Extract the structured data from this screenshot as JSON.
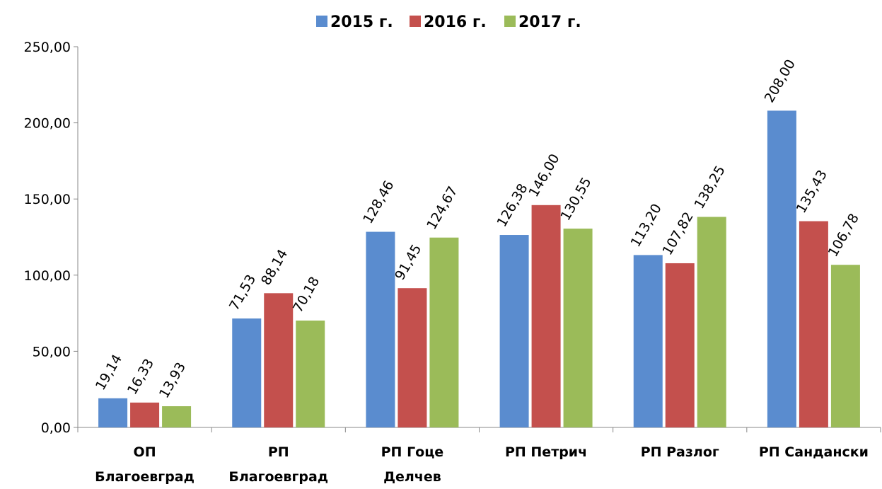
{
  "chart_data": {
    "type": "bar",
    "categories": [
      [
        "ОП",
        "Благоевград"
      ],
      [
        "РП",
        "Благоевград"
      ],
      [
        "РП Гоце",
        "Делчев"
      ],
      [
        "РП Петрич"
      ],
      [
        "РП Разлог"
      ],
      [
        "РП Сандански"
      ]
    ],
    "series": [
      {
        "name": "2015 г.",
        "color": "#5a8ccf",
        "values": [
          19.14,
          71.53,
          128.46,
          126.38,
          113.2,
          208
        ],
        "value_labels": [
          "19,14",
          "71,53",
          "128,46",
          "126,38",
          "113,20",
          "208,00"
        ]
      },
      {
        "name": "2016 г.",
        "color": "#c4504d",
        "values": [
          16.33,
          88.14,
          91.45,
          146,
          107.82,
          135.43
        ],
        "value_labels": [
          "16,33",
          "88,14",
          "91,45",
          "146,00",
          "107,82",
          "135,43"
        ]
      },
      {
        "name": "2017 г.",
        "color": "#9bbb59",
        "values": [
          13.93,
          70.18,
          124.67,
          130.55,
          138.25,
          106.78
        ],
        "value_labels": [
          "13,93",
          "70,18",
          "124,67",
          "130,55",
          "138,25",
          "106,78"
        ]
      }
    ],
    "ylim": [
      0,
      250
    ],
    "yticks": [
      {
        "value": 0,
        "label": "0,00"
      },
      {
        "value": 50,
        "label": "50,00"
      },
      {
        "value": 100,
        "label": "100,00"
      },
      {
        "value": 150,
        "label": "150,00"
      },
      {
        "value": 200,
        "label": "200,00"
      },
      {
        "value": 250,
        "label": "250,00"
      }
    ],
    "legend": "top"
  }
}
